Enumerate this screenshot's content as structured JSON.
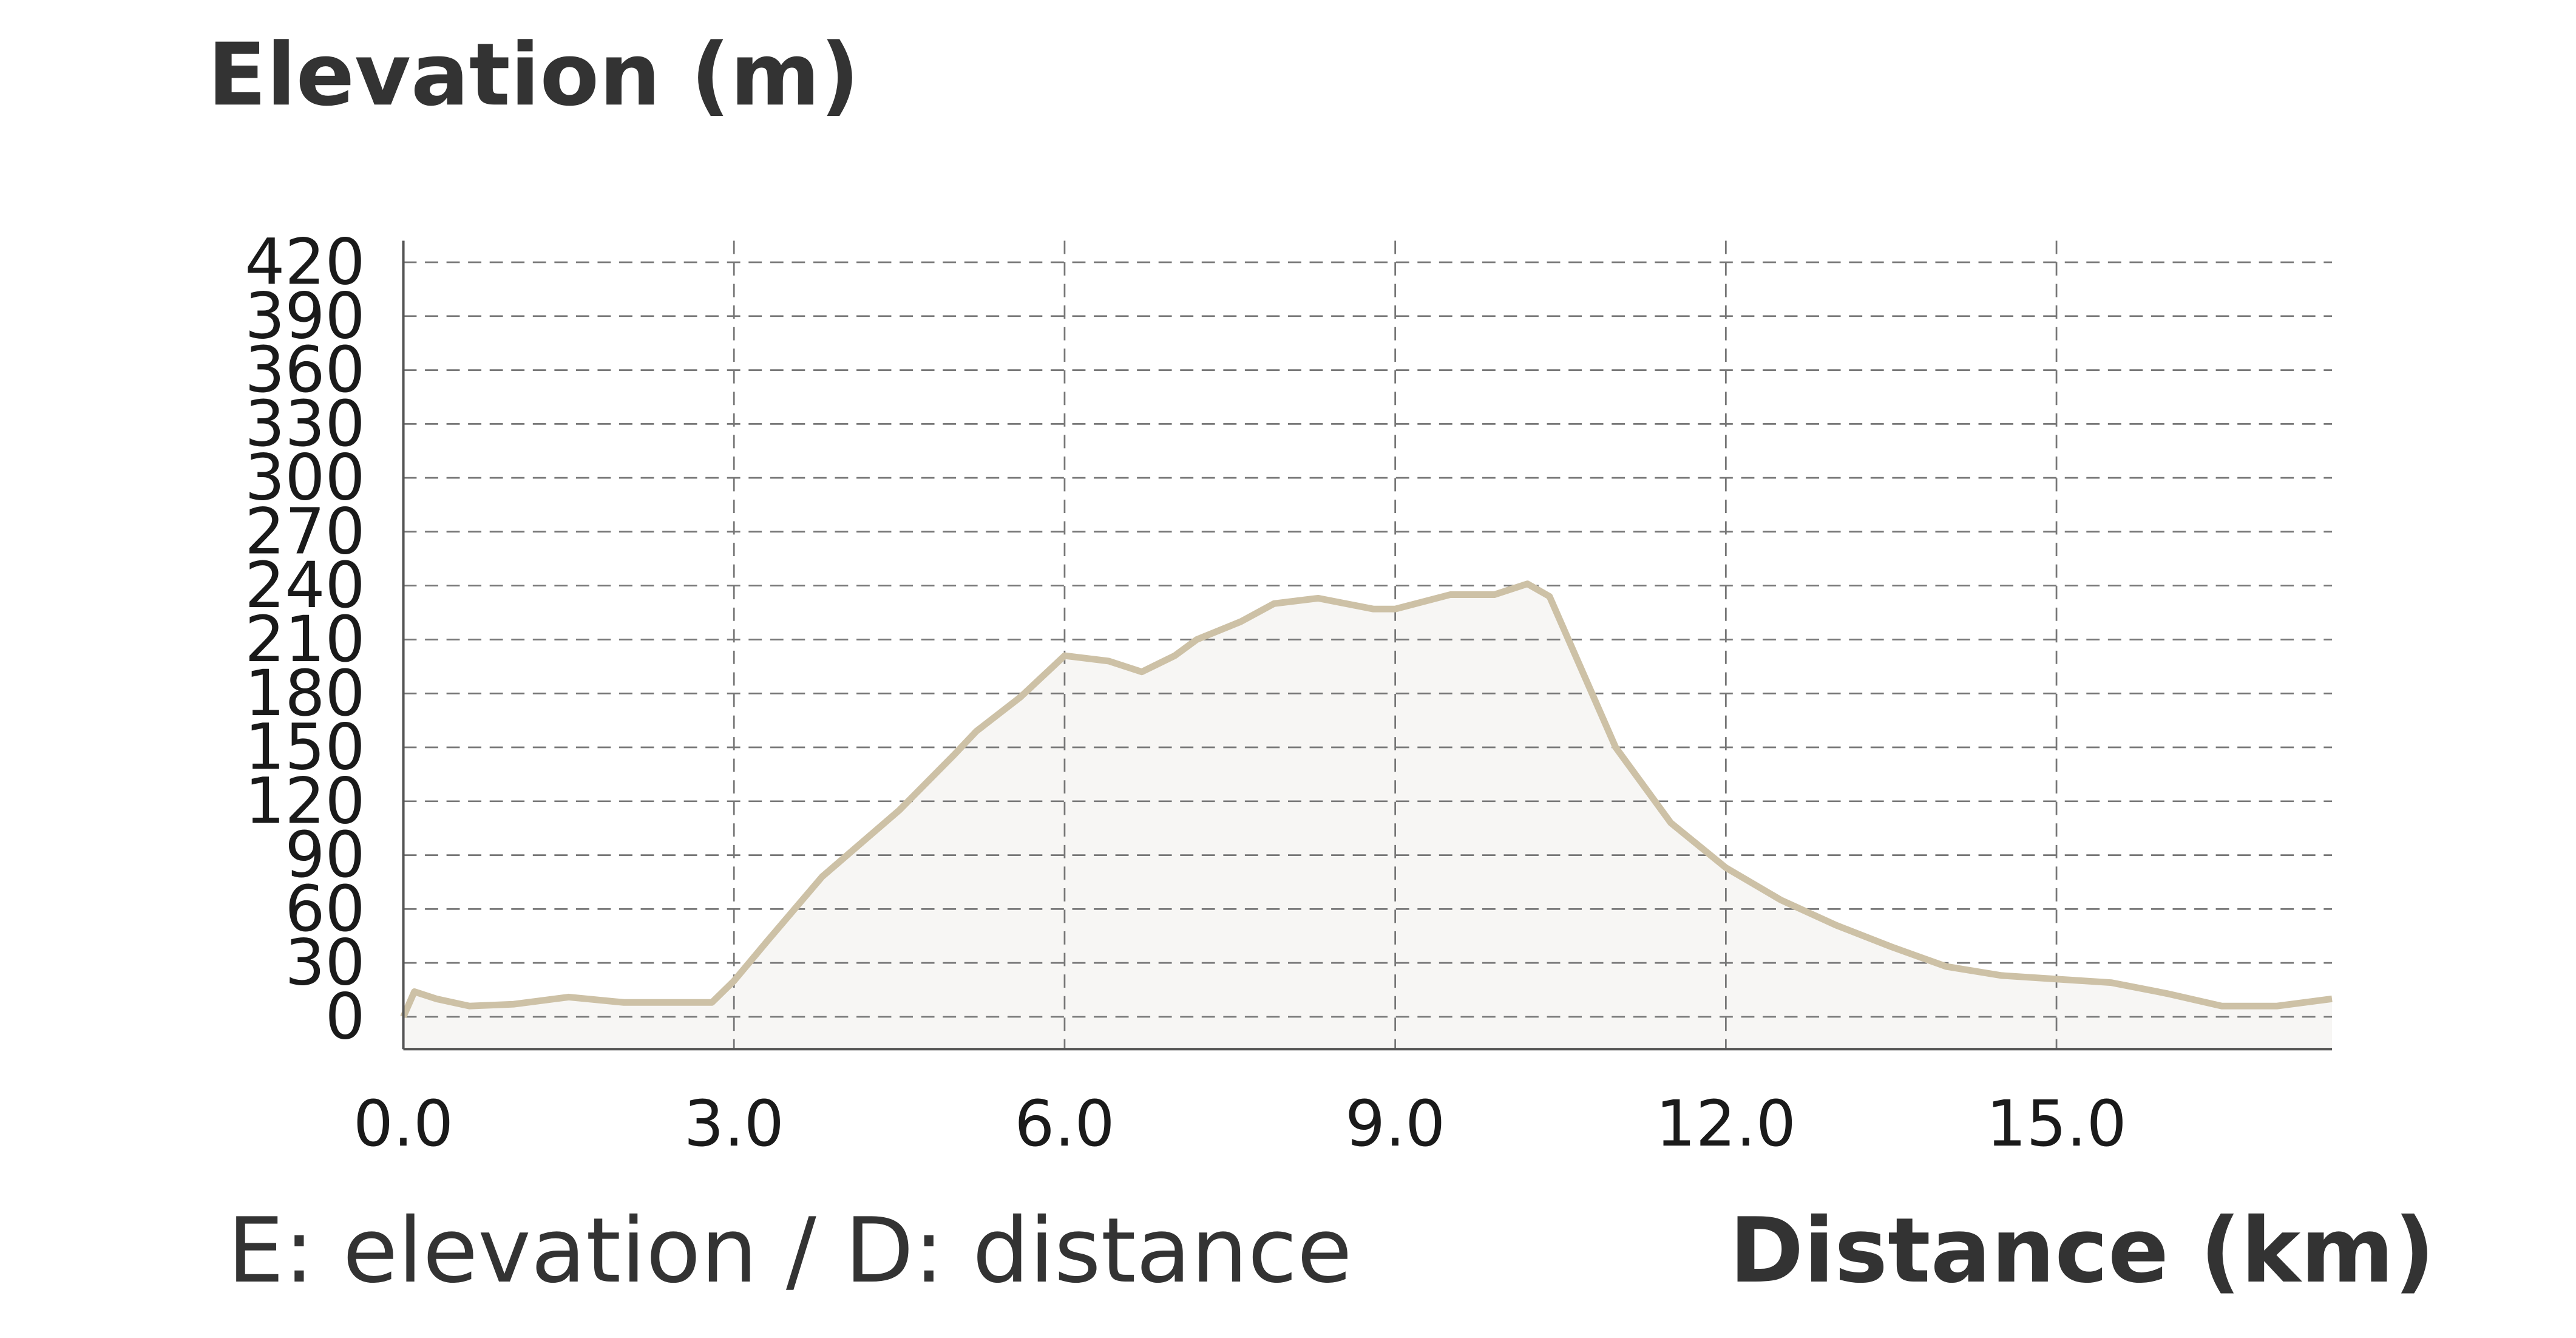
{
  "chart_data": {
    "type": "area-line",
    "title": "Elevation (m)",
    "x_label": "Distance (km)",
    "annotation": "E: elevation / D: distance",
    "x": [
      0.0,
      0.1,
      0.3,
      0.6,
      1.0,
      1.5,
      2.0,
      2.8,
      3.0,
      3.3,
      3.8,
      4.5,
      5.0,
      5.2,
      5.6,
      6.0,
      6.4,
      6.7,
      7.0,
      7.2,
      7.6,
      7.9,
      8.3,
      8.8,
      9.0,
      9.5,
      9.9,
      10.2,
      10.4,
      10.8,
      11.0,
      11.5,
      12.0,
      12.5,
      13.0,
      13.5,
      14.0,
      14.5,
      15.0,
      15.5,
      16.0,
      16.5,
      17.0,
      17.5
    ],
    "series": [
      {
        "color": "#cdc1a6",
        "fill": "#f7f6f4",
        "values": [
          0,
          14,
          10,
          6,
          7,
          11,
          8,
          8,
          20,
          42,
          78,
          115,
          146,
          159,
          178,
          201,
          198,
          192,
          201,
          210,
          220,
          230,
          233,
          227,
          227,
          235,
          235,
          241,
          234,
          178,
          150,
          108,
          83,
          65,
          51,
          39,
          28,
          23,
          21,
          19,
          13,
          6,
          6,
          10
        ]
      }
    ],
    "xlim": [
      0,
      17.5
    ],
    "ylim": [
      -18,
      432
    ],
    "xticks": [
      {
        "value": 0,
        "label": "0.0"
      },
      {
        "value": 3,
        "label": "3.0"
      },
      {
        "value": 6,
        "label": "6.0"
      },
      {
        "value": 9,
        "label": "9.0"
      },
      {
        "value": 12,
        "label": "12.0"
      },
      {
        "value": 15,
        "label": "15.0"
      }
    ],
    "yticks": [
      0,
      30,
      60,
      90,
      120,
      150,
      180,
      210,
      240,
      270,
      300,
      330,
      360,
      390,
      420
    ],
    "grid": true
  }
}
